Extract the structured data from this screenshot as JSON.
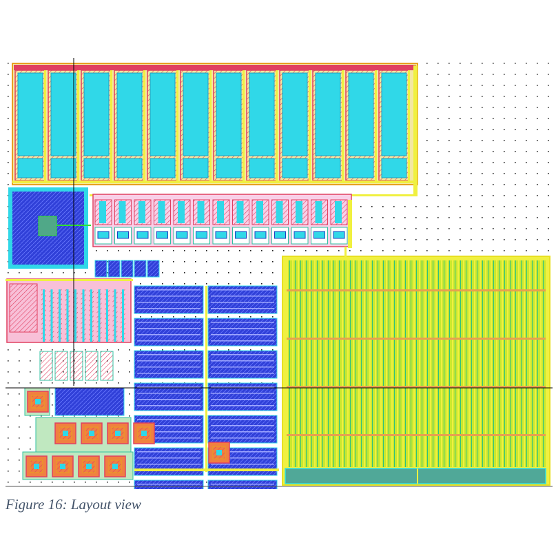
{
  "figure": {
    "caption": "Figure 16: Layout view"
  }
}
